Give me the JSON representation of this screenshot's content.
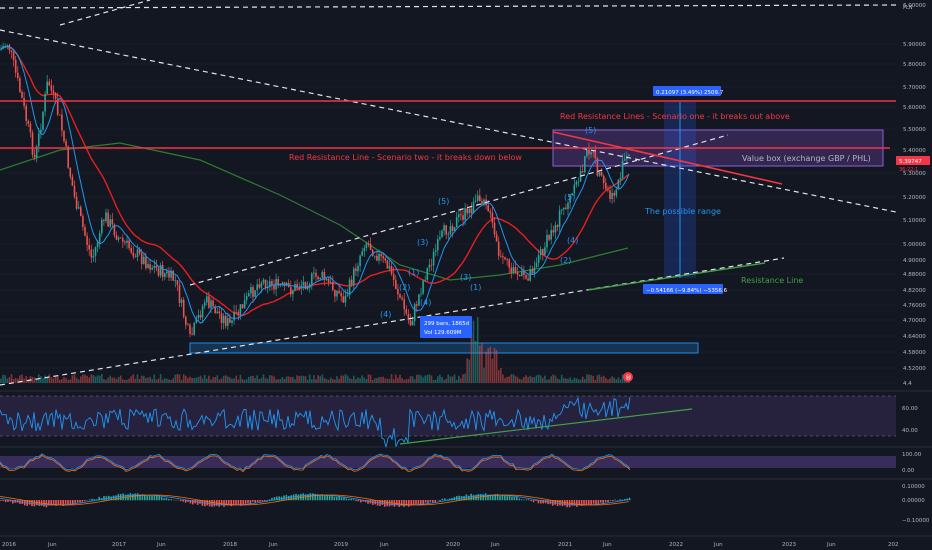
{
  "chart_data": {
    "type": "candlestick",
    "currency": "PLN",
    "x_ticks": [
      "2016",
      "Jun",
      "2017",
      "Jun",
      "2018",
      "Jun",
      "2019",
      "Jun",
      "2020",
      "Jun",
      "2021",
      "Jun",
      "2022",
      "Jun",
      "2023",
      "Jun",
      "202"
    ],
    "y_ticks": [
      "6.00000",
      "5.90000",
      "5.80000",
      "5.70000",
      "5.60000",
      "5.50000",
      "5.40000",
      "5.30000",
      "5.20000",
      "5.10000",
      "5.00000",
      "4.90000",
      "4.88000",
      "4.82000",
      "4.76000",
      "4.70000",
      "4.64000",
      "4.58000",
      "4.52000",
      "4.4"
    ],
    "price_label_1": "5.39747",
    "price_label_2": "36:22:1",
    "volume_icon_label": "®",
    "annotations": {
      "red_resistance_one": "Red Resistance Lines - Scenario one - it breaks out above",
      "red_resistance_two": "Red Resistance Line - Scenario two - it breaks down below",
      "value_box": "Value box (exchange GBP / PHL)",
      "possible_range": "The possible range",
      "resistance_line": "Resistance Line",
      "measure_top": "0.21097 (3.49%) 2509.7",
      "measure_bottom": "−0.54166 (−9.84%) −5356.6",
      "bars_label_1": "299 bars, 1865d",
      "bars_label_2": "Vol 129.609M",
      "waves": [
        "(5)",
        "(5)",
        "(4)",
        "(3)",
        "(2)",
        "(1)",
        "(4)",
        "(3)",
        "(1)",
        "(2)",
        "(4)",
        "(5)"
      ]
    },
    "rsi": {
      "ticks": [
        "60.00",
        "40.00"
      ]
    },
    "stoch": {
      "ticks": [
        "100.00",
        "0.00"
      ]
    },
    "macd": {
      "ticks": [
        "0.10000",
        "0.00000",
        "−0.10000"
      ]
    },
    "colors": {
      "bg": "#131722",
      "up": "#26a69a",
      "down": "#ef5350",
      "red_line": "#f23645",
      "ma_red": "#e91e1e",
      "ma_green": "#2e7d32",
      "ma_blue": "#2196f3",
      "purple": "#7e57c2",
      "box_blue": "#1e88e5"
    }
  }
}
